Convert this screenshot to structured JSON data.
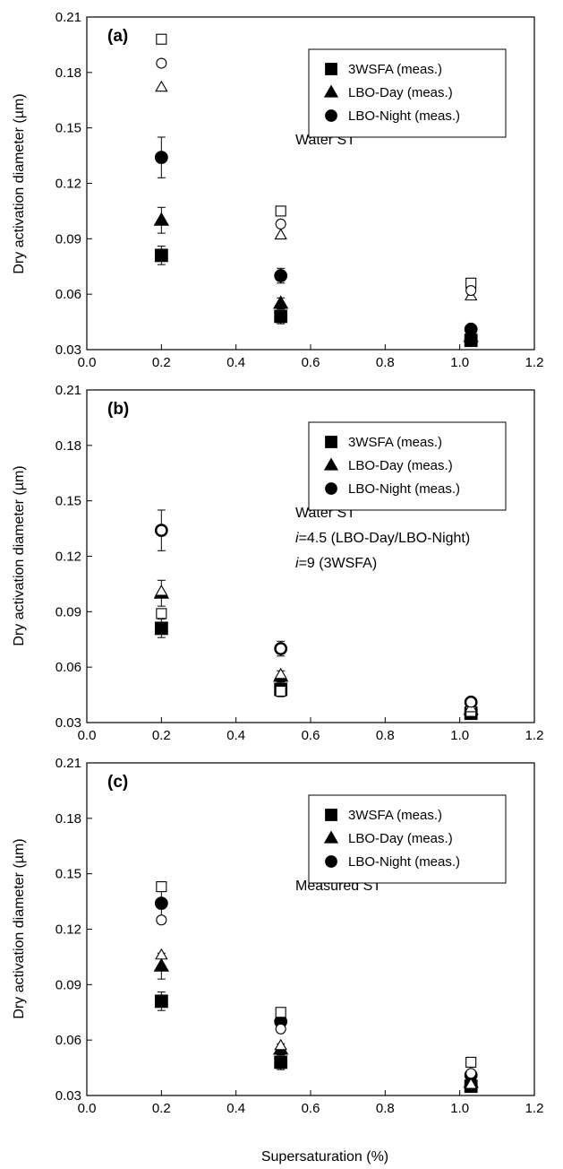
{
  "figure": {
    "xlabel": "Supersaturation (%)",
    "ylabel": "Dry activation diameter (µm)"
  },
  "chart_data": [
    {
      "type": "scatter",
      "panel_label": "(a)",
      "annotation_lines": [
        "Water ST"
      ],
      "xlim": [
        0.0,
        1.2
      ],
      "ylim": [
        0.03,
        0.21
      ],
      "xticks": [
        "0.0",
        "0.2",
        "0.4",
        "0.6",
        "0.8",
        "1.0",
        "1.2"
      ],
      "yticks": [
        "0.03",
        "0.06",
        "0.09",
        "0.12",
        "0.15",
        "0.18",
        "0.21"
      ],
      "legend": {
        "position": "top-right",
        "entries": [
          {
            "label": "3WSFA (meas.)",
            "marker": "square"
          },
          {
            "label": "LBO-Day (meas.)",
            "marker": "triangle"
          },
          {
            "label": "LBO-Night (meas.)",
            "marker": "circle"
          }
        ]
      },
      "x": [
        0.2,
        0.52,
        1.03
      ],
      "series": [
        {
          "marker": "square",
          "filled": true,
          "y": [
            0.081,
            0.048,
            0.035
          ],
          "err": [
            0.005,
            0.004,
            0.002
          ]
        },
        {
          "marker": "triangle",
          "filled": true,
          "y": [
            0.1,
            0.055,
            0.037
          ],
          "err": [
            0.007,
            0.003,
            0.002
          ]
        },
        {
          "marker": "circle",
          "filled": true,
          "y": [
            0.134,
            0.07,
            0.041
          ],
          "err": [
            0.011,
            0.004,
            0.002
          ]
        },
        {
          "marker": "square",
          "filled": false,
          "y": [
            0.198,
            0.105,
            0.066
          ],
          "err": []
        },
        {
          "marker": "triangle",
          "filled": false,
          "y": [
            0.172,
            0.092,
            0.059
          ],
          "err": []
        },
        {
          "marker": "circle",
          "filled": false,
          "y": [
            0.185,
            0.098,
            0.062
          ],
          "err": []
        }
      ]
    },
    {
      "type": "scatter",
      "panel_label": "(b)",
      "annotation_lines": [
        "Water ST",
        "i=4.5 (LBO-Day/LBO-Night)",
        "i=9 (3WSFA)"
      ],
      "xlim": [
        0.0,
        1.2
      ],
      "ylim": [
        0.03,
        0.21
      ],
      "xticks": [
        "0.0",
        "0.2",
        "0.4",
        "0.6",
        "0.8",
        "1.0",
        "1.2"
      ],
      "yticks": [
        "0.03",
        "0.06",
        "0.09",
        "0.12",
        "0.15",
        "0.18",
        "0.21"
      ],
      "legend": {
        "position": "top-right",
        "entries": [
          {
            "label": "3WSFA (meas.)",
            "marker": "square"
          },
          {
            "label": "LBO-Day (meas.)",
            "marker": "triangle"
          },
          {
            "label": "LBO-Night (meas.)",
            "marker": "circle"
          }
        ]
      },
      "x": [
        0.2,
        0.52,
        1.03
      ],
      "series": [
        {
          "marker": "square",
          "filled": true,
          "y": [
            0.081,
            0.048,
            0.035
          ],
          "err": [
            0.005,
            0.004,
            0.002
          ]
        },
        {
          "marker": "triangle",
          "filled": true,
          "y": [
            0.1,
            0.055,
            0.037
          ],
          "err": [
            0.007,
            0.003,
            0.002
          ]
        },
        {
          "marker": "circle",
          "filled": true,
          "y": [
            0.134,
            0.07,
            0.041
          ],
          "err": [
            0.011,
            0.004,
            0.002
          ]
        },
        {
          "marker": "square",
          "filled": false,
          "y": [
            0.089,
            0.047,
            0.036
          ],
          "err": []
        },
        {
          "marker": "triangle",
          "filled": false,
          "y": [
            0.101,
            0.056,
            0.038
          ],
          "err": []
        },
        {
          "marker": "circle",
          "filled": false,
          "y": [
            0.134,
            0.07,
            0.041
          ],
          "err": []
        }
      ]
    },
    {
      "type": "scatter",
      "panel_label": "(c)",
      "annotation_lines": [
        "Measured ST"
      ],
      "xlim": [
        0.0,
        1.2
      ],
      "ylim": [
        0.03,
        0.21
      ],
      "xticks": [
        "0.0",
        "0.2",
        "0.4",
        "0.6",
        "0.8",
        "1.0",
        "1.2"
      ],
      "yticks": [
        "0.03",
        "0.06",
        "0.09",
        "0.12",
        "0.15",
        "0.18",
        "0.21"
      ],
      "legend": {
        "position": "top-right",
        "entries": [
          {
            "label": "3WSFA (meas.)",
            "marker": "square"
          },
          {
            "label": "LBO-Day (meas.)",
            "marker": "triangle"
          },
          {
            "label": "LBO-Night (meas.)",
            "marker": "circle"
          }
        ]
      },
      "x": [
        0.2,
        0.52,
        1.03
      ],
      "series": [
        {
          "marker": "square",
          "filled": true,
          "y": [
            0.081,
            0.048,
            0.035
          ],
          "err": [
            0.005,
            0.004,
            0.002
          ]
        },
        {
          "marker": "triangle",
          "filled": true,
          "y": [
            0.1,
            0.055,
            0.037
          ],
          "err": [
            0.007,
            0.003,
            0.002
          ]
        },
        {
          "marker": "circle",
          "filled": true,
          "y": [
            0.134,
            0.07,
            0.041
          ],
          "err": [
            0.011,
            0.004,
            0.002
          ]
        },
        {
          "marker": "square",
          "filled": false,
          "y": [
            0.143,
            0.075,
            0.048
          ],
          "err": []
        },
        {
          "marker": "triangle",
          "filled": false,
          "y": [
            0.106,
            0.057,
            0.036
          ],
          "err": []
        },
        {
          "marker": "circle",
          "filled": false,
          "y": [
            0.125,
            0.066,
            0.042
          ],
          "err": []
        }
      ]
    }
  ]
}
